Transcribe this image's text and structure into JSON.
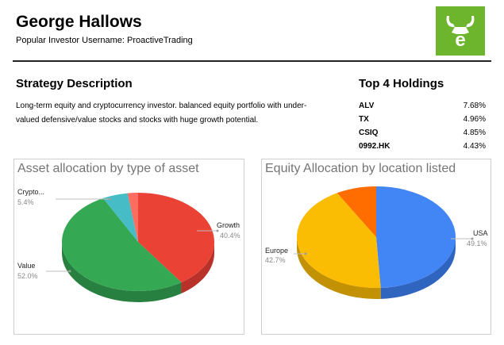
{
  "profile": {
    "name": "George Hallows",
    "username_line": "Popular Investor Username: ProactiveTrading"
  },
  "logo": {
    "icon": "etoro-bull-logo",
    "color": "#6cb52d"
  },
  "strategy": {
    "title": "Strategy Description",
    "text": "Long-term equity and cryptocurrency investor. balanced equity portfolio with under-valued defensive/value stocks and stocks with huge growth potential."
  },
  "holdings": {
    "title": "Top 4 Holdings",
    "items": [
      {
        "ticker": "ALV",
        "weight": "7.68%"
      },
      {
        "ticker": "TX",
        "weight": "4.96%"
      },
      {
        "ticker": "CSIQ",
        "weight": "4.85%"
      },
      {
        "ticker": "0992.HK",
        "weight": "4.43%"
      }
    ]
  },
  "chart_data": [
    {
      "type": "pie",
      "title": "Asset allocation by type of asset",
      "slices": [
        {
          "label": "Growth",
          "value": 40.4,
          "display": "40.4%",
          "color": "#ea4335",
          "side": "#b8322a"
        },
        {
          "label": "Value",
          "value": 52.0,
          "display": "52.0%",
          "color": "#34a853",
          "side": "#27803f"
        },
        {
          "label": "Crypto...",
          "value": 5.4,
          "display": "5.4%",
          "color": "#46bdc6",
          "side": "#35929a"
        },
        {
          "label": "",
          "value": 2.2,
          "display": "",
          "color": "#ff6d60",
          "side": "#c45348"
        }
      ]
    },
    {
      "type": "pie",
      "title": "Equity Allocation by location listed",
      "slices": [
        {
          "label": "USA",
          "value": 49.1,
          "display": "49.1%",
          "color": "#4285f4",
          "side": "#2f64bf"
        },
        {
          "label": "Europe",
          "value": 42.7,
          "display": "42.7%",
          "color": "#fbbc04",
          "side": "#c29104"
        },
        {
          "label": "",
          "value": 8.2,
          "display": "",
          "color": "#ff6d01",
          "side": "#c45401"
        }
      ]
    }
  ]
}
